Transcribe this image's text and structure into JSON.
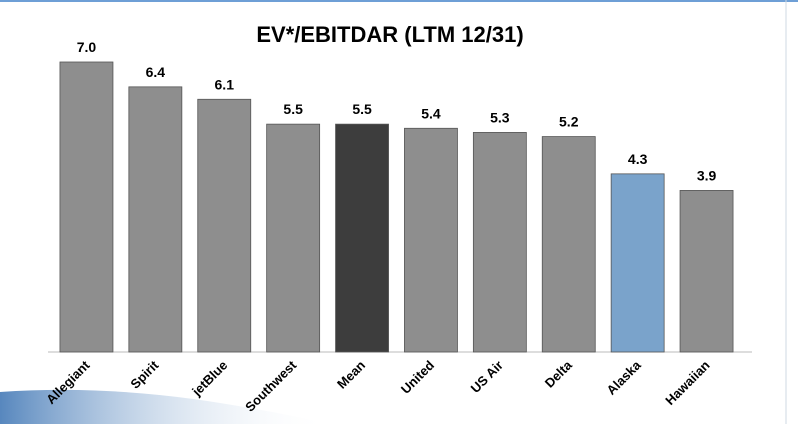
{
  "chart_data": {
    "type": "bar",
    "title": "EV*/EBITDAR (LTM 12/31)",
    "categories": [
      "Allegiant",
      "Spirit",
      "jetBlue",
      "Southwest",
      "Mean",
      "United",
      "US Air",
      "Delta",
      "Alaska",
      "Hawaiian"
    ],
    "values": [
      7.0,
      6.4,
      6.1,
      5.5,
      5.5,
      5.4,
      5.3,
      5.2,
      4.3,
      3.9
    ],
    "value_labels": [
      "7.0",
      "6.4",
      "6.1",
      "5.5",
      "5.5",
      "5.4",
      "5.3",
      "5.2",
      "4.3",
      "3.9"
    ],
    "colors": [
      "#8e8e8e",
      "#8e8e8e",
      "#8e8e8e",
      "#8e8e8e",
      "#3d3d3d",
      "#8e8e8e",
      "#8e8e8e",
      "#8e8e8e",
      "#7aa3cb",
      "#8e8e8e"
    ]
  }
}
